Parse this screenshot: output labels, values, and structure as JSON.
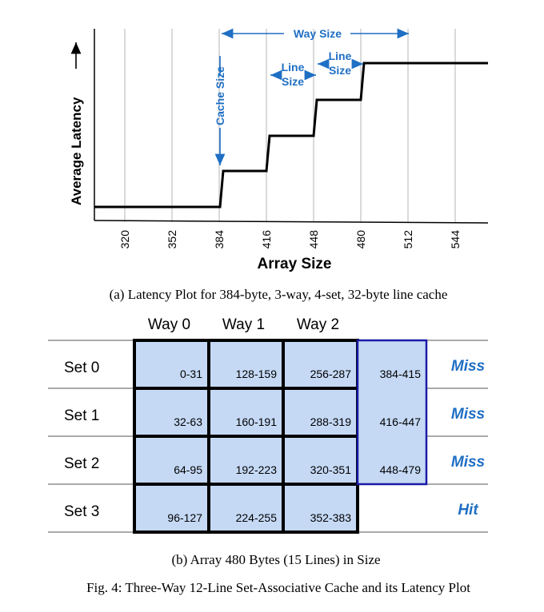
{
  "plot": {
    "ylabel": "Average Latency",
    "xlabel": "Array Size",
    "xticks": [
      "320",
      "352",
      "384",
      "416",
      "448",
      "480",
      "512",
      "544"
    ],
    "annotations": {
      "cache_size": "Cache Size",
      "way_size": "Way Size",
      "line_size_1": [
        "Line",
        "Size"
      ],
      "line_size_2": [
        "Line",
        "Size"
      ]
    }
  },
  "chart_data": {
    "type": "line",
    "xlabel": "Array Size",
    "ylabel": "Average Latency",
    "x_ticks": [
      320,
      352,
      384,
      416,
      448,
      480,
      512,
      544
    ],
    "series": [
      {
        "x": [
          384,
          416,
          448,
          480
        ],
        "step_levels": [
          1,
          2,
          3,
          4
        ]
      }
    ]
  },
  "caption_a": "(a) Latency Plot for 384-byte, 3-way, 4-set, 32-byte line cache",
  "grid": {
    "headers": [
      "Way 0",
      "Way 1",
      "Way 2"
    ],
    "rows": [
      {
        "set": "Set 0",
        "cells": [
          "0-31",
          "128-159",
          "256-287"
        ],
        "extra": "384-415",
        "status": "Miss"
      },
      {
        "set": "Set 1",
        "cells": [
          "32-63",
          "160-191",
          "288-319"
        ],
        "extra": "416-447",
        "status": "Miss"
      },
      {
        "set": "Set 2",
        "cells": [
          "64-95",
          "192-223",
          "320-351"
        ],
        "extra": "448-479",
        "status": "Miss"
      },
      {
        "set": "Set 3",
        "cells": [
          "96-127",
          "224-255",
          "352-383"
        ],
        "extra": "",
        "status": "Hit"
      }
    ]
  },
  "caption_b": "(b) Array 480 Bytes (15 Lines) in Size",
  "figure_caption": "Fig. 4: Three-Way 12-Line Set-Associative Cache and its Latency Plot",
  "colors": {
    "accent": "#1f6fc4",
    "cell_fill": "#c5d9f5",
    "extra_border": "#1a1aa6",
    "line": "#000000"
  }
}
